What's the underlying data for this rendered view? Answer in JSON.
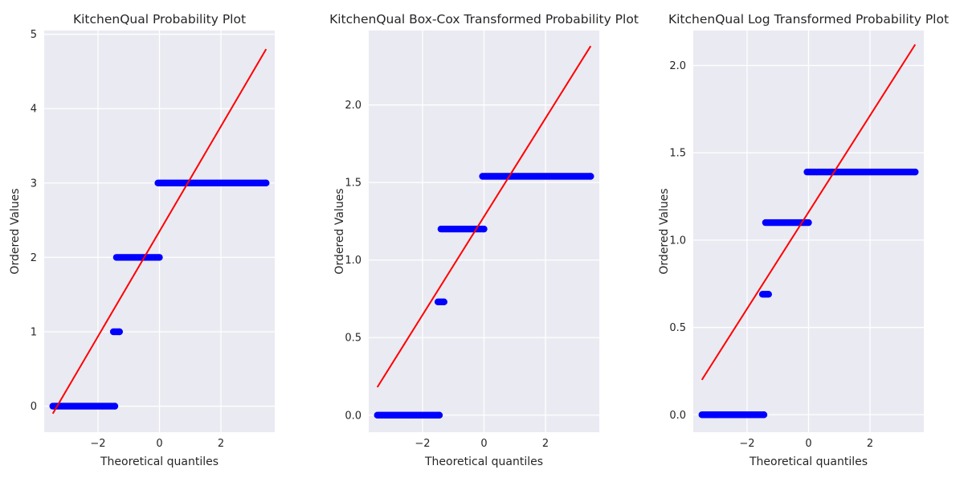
{
  "colors": {
    "points": "#0000ff",
    "fit_line": "#ff0000",
    "background": "#eaeaf2",
    "grid": "#ffffff"
  },
  "chart_data": [
    {
      "type": "scatter",
      "title": "KitchenQual Probability Plot",
      "xlabel": "Theoretical quantiles",
      "ylabel": "Ordered Values",
      "xlim": [
        -3.75,
        3.75
      ],
      "ylim": [
        -0.35,
        5.05
      ],
      "xticks": [
        -2,
        0,
        2
      ],
      "xtick_labels": [
        "−2",
        "0",
        "2"
      ],
      "yticks": [
        0,
        1,
        2,
        3,
        4,
        5
      ],
      "ytick_labels": [
        "0",
        "1",
        "2",
        "3",
        "4",
        "5"
      ],
      "grid": true,
      "groups": [
        {
          "y": 0,
          "x_from": -3.47,
          "x_to": -1.45
        },
        {
          "y": 1,
          "x_from": -1.5,
          "x_to": -1.3
        },
        {
          "y": 2,
          "x_from": -1.4,
          "x_to": 0.0
        },
        {
          "y": 3,
          "x_from": -0.05,
          "x_to": 3.47
        }
      ],
      "fit_line": {
        "x": [
          -3.47,
          3.47
        ],
        "y": [
          -0.1,
          4.8
        ]
      }
    },
    {
      "type": "scatter",
      "title": "KitchenQual Box-Cox Transformed Probability Plot",
      "xlabel": "Theoretical quantiles",
      "ylabel": "Ordered Values",
      "xlim": [
        -3.75,
        3.75
      ],
      "ylim": [
        -0.11,
        2.48
      ],
      "xticks": [
        -2,
        0,
        2
      ],
      "xtick_labels": [
        "−2",
        "0",
        "2"
      ],
      "yticks": [
        0,
        0.5,
        1.0,
        1.5,
        2.0
      ],
      "ytick_labels": [
        "0.0",
        "0.5",
        "1.0",
        "1.5",
        "2.0"
      ],
      "grid": true,
      "groups": [
        {
          "y": 0,
          "x_from": -3.47,
          "x_to": -1.45
        },
        {
          "y": 0.73,
          "x_from": -1.5,
          "x_to": -1.3
        },
        {
          "y": 1.2,
          "x_from": -1.4,
          "x_to": 0.0
        },
        {
          "y": 1.54,
          "x_from": -0.05,
          "x_to": 3.47
        }
      ],
      "fit_line": {
        "x": [
          -3.47,
          3.47
        ],
        "y": [
          0.18,
          2.38
        ]
      }
    },
    {
      "type": "scatter",
      "title": "KitchenQual Log Transformed Probability Plot",
      "xlabel": "Theoretical quantiles",
      "ylabel": "Ordered Values",
      "xlim": [
        -3.75,
        3.75
      ],
      "ylim": [
        -0.1,
        2.2
      ],
      "xticks": [
        -2,
        0,
        2
      ],
      "xtick_labels": [
        "−2",
        "0",
        "2"
      ],
      "yticks": [
        0,
        0.5,
        1.0,
        1.5,
        2.0
      ],
      "ytick_labels": [
        "0.0",
        "0.5",
        "1.0",
        "1.5",
        "2.0"
      ],
      "grid": true,
      "groups": [
        {
          "y": 0,
          "x_from": -3.47,
          "x_to": -1.45
        },
        {
          "y": 0.69,
          "x_from": -1.5,
          "x_to": -1.3
        },
        {
          "y": 1.1,
          "x_from": -1.4,
          "x_to": 0.0
        },
        {
          "y": 1.39,
          "x_from": -0.05,
          "x_to": 3.47
        }
      ],
      "fit_line": {
        "x": [
          -3.47,
          3.47
        ],
        "y": [
          0.2,
          2.12
        ]
      }
    }
  ]
}
